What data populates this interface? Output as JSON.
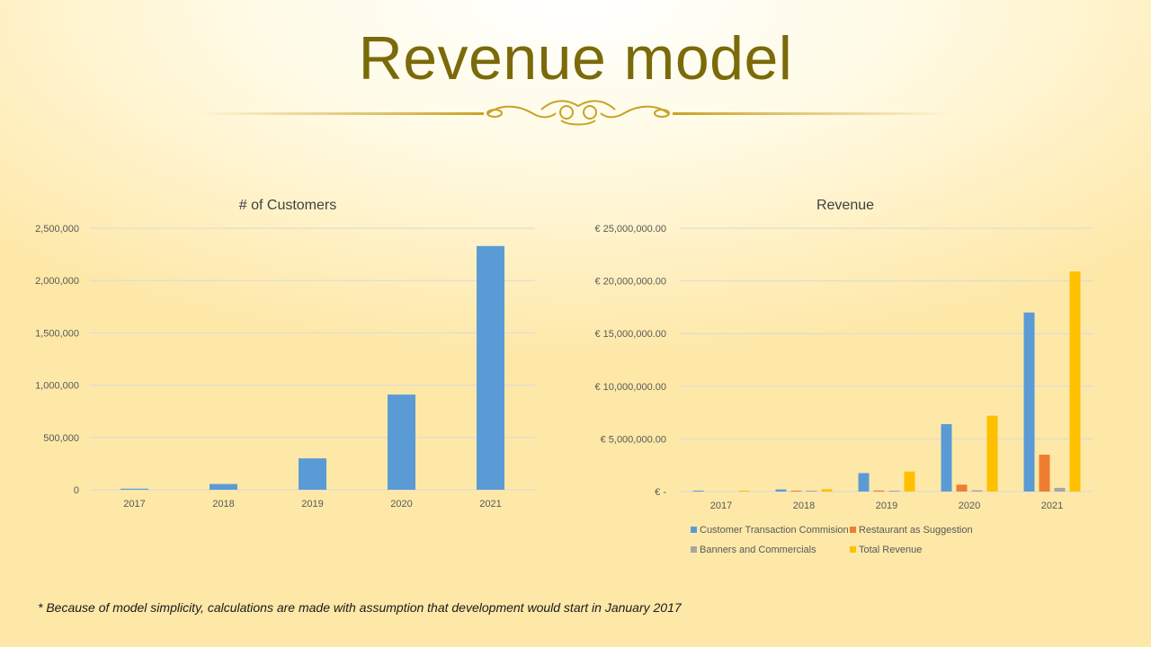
{
  "slide": {
    "title": "Revenue model",
    "footnote": "* Because of model simplicity, calculations are made with assumption that development would start in January 2017"
  },
  "colors": {
    "title": "#7b6a09",
    "ornament": "#c9a227",
    "blue": "#5b9bd5",
    "orange": "#ed7d31",
    "gray": "#a5a5a5",
    "gold": "#ffc000"
  },
  "chart_data": [
    {
      "type": "bar",
      "title": "# of Customers",
      "categories": [
        "2017",
        "2018",
        "2019",
        "2020",
        "2021"
      ],
      "series": [
        {
          "values": [
            10000,
            55000,
            300000,
            910000,
            2330000
          ],
          "color": "#5b9bd5"
        }
      ],
      "ylim": [
        0,
        2500000
      ],
      "yticks": [
        "0",
        "500,000",
        "1,000,000",
        "1,500,000",
        "2,000,000",
        "2,500,000"
      ],
      "grid": true,
      "legend": "none"
    },
    {
      "type": "bar",
      "title": "Revenue",
      "categories": [
        "2017",
        "2018",
        "2019",
        "2020",
        "2021"
      ],
      "series": [
        {
          "name": "Customer Transaction Commision",
          "values": [
            30000,
            200000,
            1750000,
            6400000,
            17000000
          ],
          "color": "#5b9bd5"
        },
        {
          "name": "Restaurant as Suggestion",
          "values": [
            0,
            15000,
            100000,
            650000,
            3500000
          ],
          "color": "#ed7d31"
        },
        {
          "name": "Banners and Commercials",
          "values": [
            0,
            8000,
            40000,
            120000,
            350000
          ],
          "color": "#a5a5a5"
        },
        {
          "name": "Total Revenue",
          "values": [
            30000,
            220000,
            1900000,
            7200000,
            20900000
          ],
          "color": "#ffc000"
        }
      ],
      "ylim": [
        0,
        25000000
      ],
      "yticks": [
        "€ -",
        "€ 5,000,000.00",
        "€ 10,000,000.00",
        "€ 15,000,000.00",
        "€ 20,000,000.00",
        "€ 25,000,000.00"
      ],
      "grid": true,
      "legend": "bottom"
    }
  ]
}
